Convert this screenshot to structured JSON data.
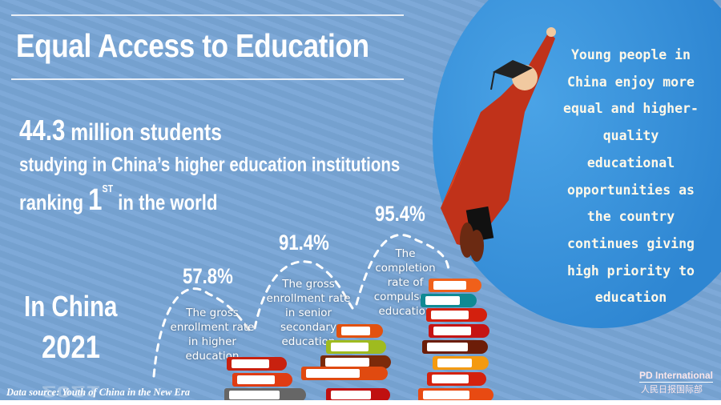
{
  "title": "Equal Access to Education",
  "headline": {
    "number": "44.3",
    "number_suffix": " million students",
    "line2": "studying in China’s higher education institutions",
    "line3_prefix": "ranking ",
    "rank": "1",
    "rank_suffix": "ST",
    "line3_suffix": " in the world"
  },
  "place": "In China",
  "year": "2021",
  "stats": [
    {
      "value": "57.8%",
      "label": "The gross enrollment rate in higher education"
    },
    {
      "value": "91.4%",
      "label": "The gross enrollment rate in senior secondary education"
    },
    {
      "value": "95.4%",
      "label": "The completion rate of compulsory education"
    }
  ],
  "side_text": "Young people in China enjoy more equal and higher-quality educational opportunities as the country continues giving high priority to education",
  "source": "Data source: Youth of China in the New Era",
  "logo": {
    "en": "PD International",
    "cn": "人民日报国际部"
  },
  "colors": {
    "background": "#79a6d6",
    "globe": "#2e86d2",
    "gown": "#c0321a"
  }
}
